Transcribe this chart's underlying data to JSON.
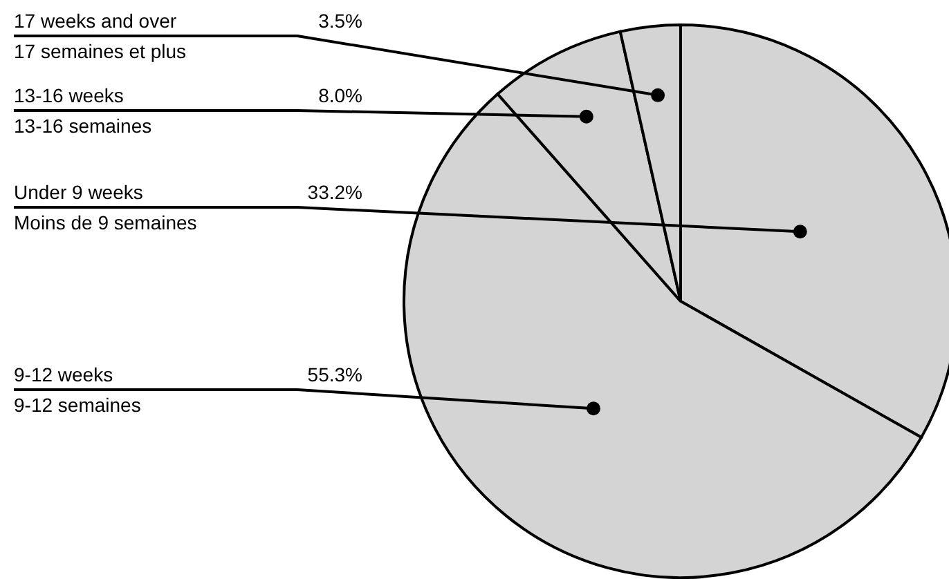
{
  "chart_data": {
    "type": "pie",
    "categories": [
      "Under 9 weeks\nMoins de 9 semaines",
      "9-12 weeks\n9-12 semaines",
      "13-16 weeks\n13-16 semaines",
      "17 weeks and over\n17 semaines et plus"
    ],
    "values": [
      33.2,
      55.3,
      8.0,
      3.5
    ],
    "value_labels": [
      "33.2%",
      "55.3%",
      "8.0%",
      "3.5%"
    ],
    "colors": [
      "#d4d4d4",
      "#d4d4d4",
      "#d4d4d4",
      "#d4d4d4"
    ]
  }
}
